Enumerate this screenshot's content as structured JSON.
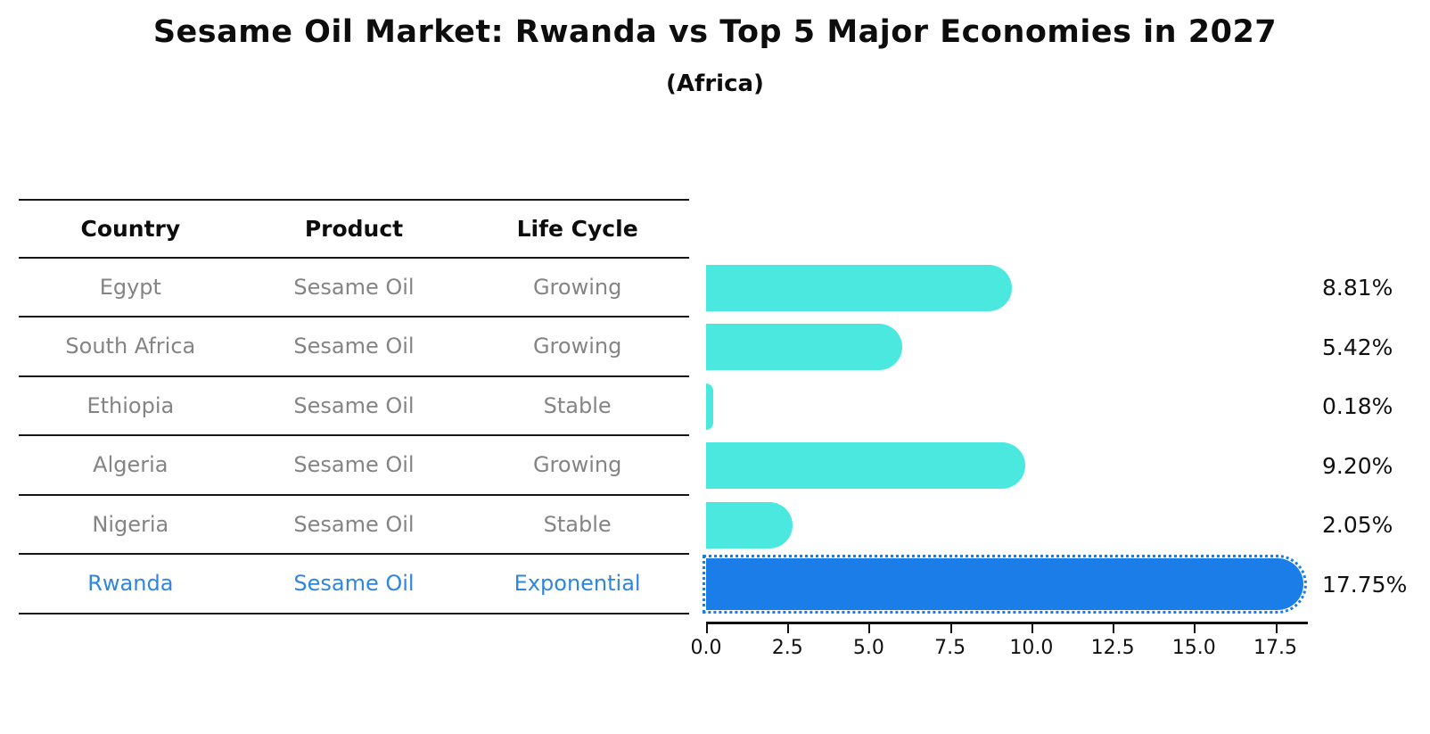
{
  "title": "Sesame Oil Market: Rwanda vs Top 5 Major Economies in 2027",
  "subtitle": "(Africa)",
  "table": {
    "headers": {
      "country": "Country",
      "product": "Product",
      "life_cycle": "Life Cycle"
    },
    "rows": [
      {
        "country": "Egypt",
        "product": "Sesame Oil",
        "life_cycle": "Growing",
        "value_label": "8.81%",
        "highlight": false
      },
      {
        "country": "South Africa",
        "product": "Sesame Oil",
        "life_cycle": "Growing",
        "value_label": "5.42%",
        "highlight": false
      },
      {
        "country": "Ethiopia",
        "product": "Sesame Oil",
        "life_cycle": "Stable",
        "value_label": "0.18%",
        "highlight": false
      },
      {
        "country": "Algeria",
        "product": "Sesame Oil",
        "life_cycle": "Growing",
        "value_label": "9.20%",
        "highlight": false
      },
      {
        "country": "Nigeria",
        "product": "Sesame Oil",
        "life_cycle": "Stable",
        "value_label": "2.05%",
        "highlight": false
      },
      {
        "country": "Rwanda",
        "product": "Sesame Oil",
        "life_cycle": "Exponential",
        "value_label": "17.75%",
        "highlight": true
      }
    ]
  },
  "chart_data": {
    "type": "bar",
    "orientation": "horizontal",
    "title": "Sesame Oil Market: Rwanda vs Top 5 Major Economies in 2027",
    "subtitle": "(Africa)",
    "categories": [
      "Egypt",
      "South Africa",
      "Ethiopia",
      "Algeria",
      "Nigeria",
      "Rwanda"
    ],
    "values": [
      8.81,
      5.42,
      0.18,
      9.2,
      2.05,
      17.75
    ],
    "value_labels": [
      "8.81%",
      "5.42%",
      "0.18%",
      "9.20%",
      "2.05%",
      "17.75%"
    ],
    "unit": "percent",
    "xlabel": "",
    "ylabel": "",
    "xlim": [
      0,
      18.5
    ],
    "x_ticks": [
      "0.0",
      "2.5",
      "5.0",
      "7.5",
      "10.0",
      "12.5",
      "15.0",
      "17.5"
    ],
    "grid": false,
    "legend": false,
    "highlight_index": 5,
    "bar_color": "#4ae8df",
    "highlight_color": "#1b7ee8"
  },
  "colors": {
    "background": "#ffffff",
    "bar_cyan": "#4ae8df",
    "bar_blue": "#1b7ee8",
    "highlight_text": "#2e86de",
    "table_text_gray": "#848484",
    "text_black": "#111111",
    "table_line": "#161616"
  }
}
